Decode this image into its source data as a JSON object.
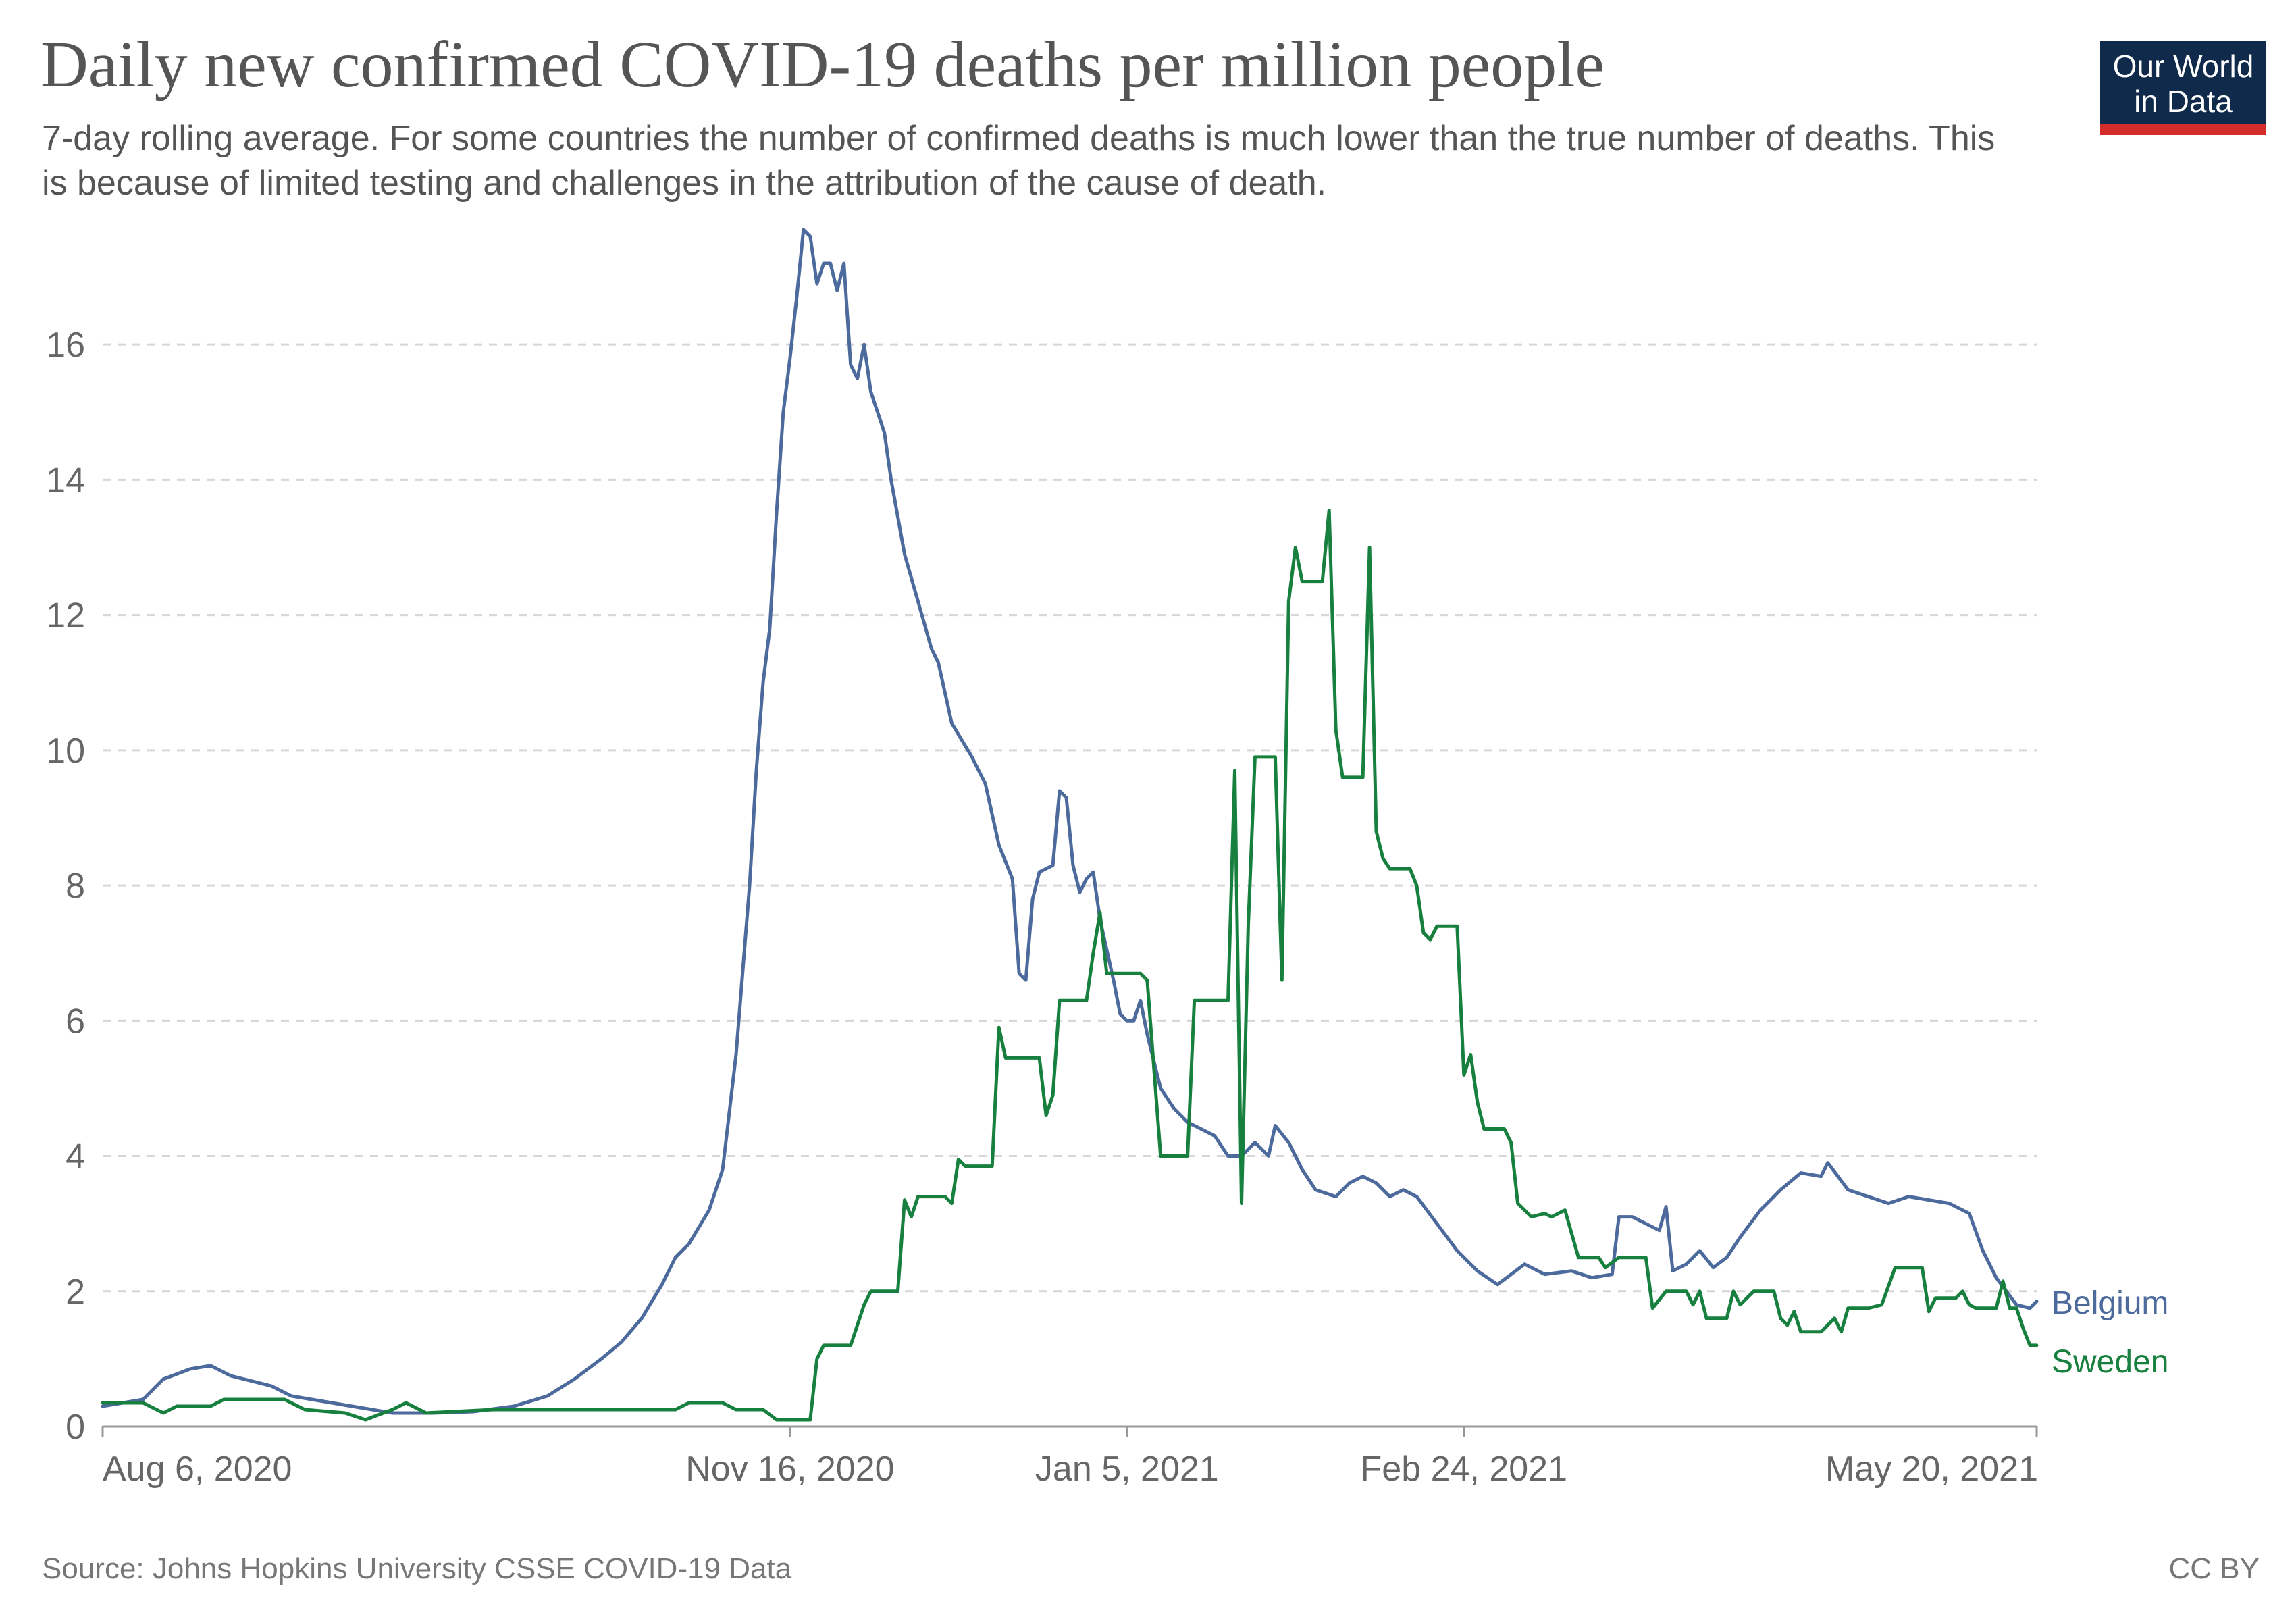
{
  "header": {
    "title": "Daily new confirmed COVID-19 deaths per million people",
    "subtitle": "7-day rolling average. For some countries the number of confirmed deaths is much lower than the true number of deaths. This is because of limited testing and challenges in the attribution of the cause of death."
  },
  "logo": {
    "line1": "Our World",
    "line2": "in Data"
  },
  "footer": {
    "source": "Source: Johns Hopkins University CSSE COVID-19 Data",
    "license": "CC BY"
  },
  "chart_data": {
    "type": "line",
    "title": "Daily new confirmed COVID-19 deaths per million people",
    "subtitle": "7-day rolling average. For some countries the number of confirmed deaths is much lower than the true number of deaths. This is because of limited testing and challenges in the attribution of the cause of death.",
    "xlabel": "",
    "ylabel": "",
    "xlim": [
      "2020-08-06",
      "2021-05-20"
    ],
    "ylim": [
      0,
      17.5
    ],
    "grid": true,
    "legend_placement": "right",
    "x_ticks": [
      "Aug 6, 2020",
      "Nov 16, 2020",
      "Jan 5, 2021",
      "Feb 24, 2021",
      "May 20, 2021"
    ],
    "x_tick_dates": [
      "2020-08-06",
      "2020-11-16",
      "2021-01-05",
      "2021-02-24",
      "2021-05-20"
    ],
    "y_ticks": [
      0,
      2,
      4,
      6,
      8,
      10,
      12,
      14,
      16
    ],
    "series": [
      {
        "name": "Belgium",
        "color": "#4c6a9c",
        "points": [
          [
            "2020-08-06",
            0.3
          ],
          [
            "2020-08-12",
            0.4
          ],
          [
            "2020-08-15",
            0.7
          ],
          [
            "2020-08-19",
            0.85
          ],
          [
            "2020-08-22",
            0.9
          ],
          [
            "2020-08-25",
            0.75
          ],
          [
            "2020-08-31",
            0.6
          ],
          [
            "2020-09-03",
            0.45
          ],
          [
            "2020-09-12",
            0.3
          ],
          [
            "2020-09-18",
            0.2
          ],
          [
            "2020-09-24",
            0.2
          ],
          [
            "2020-09-30",
            0.22
          ],
          [
            "2020-10-06",
            0.3
          ],
          [
            "2020-10-11",
            0.45
          ],
          [
            "2020-10-15",
            0.7
          ],
          [
            "2020-10-19",
            1.0
          ],
          [
            "2020-10-22",
            1.25
          ],
          [
            "2020-10-25",
            1.6
          ],
          [
            "2020-10-28",
            2.1
          ],
          [
            "2020-10-30",
            2.5
          ],
          [
            "2020-11-01",
            2.7
          ],
          [
            "2020-11-04",
            3.2
          ],
          [
            "2020-11-06",
            3.8
          ],
          [
            "2020-11-08",
            5.5
          ],
          [
            "2020-11-10",
            8.0
          ],
          [
            "2020-11-11",
            9.7
          ],
          [
            "2020-11-12",
            11.0
          ],
          [
            "2020-11-13",
            11.8
          ],
          [
            "2020-11-14",
            13.5
          ],
          [
            "2020-11-15",
            15.0
          ],
          [
            "2020-11-16",
            15.8
          ],
          [
            "2020-11-17",
            16.7
          ],
          [
            "2020-11-18",
            17.7
          ],
          [
            "2020-11-19",
            17.6
          ],
          [
            "2020-11-20",
            16.9
          ],
          [
            "2020-11-21",
            17.2
          ],
          [
            "2020-11-22",
            17.2
          ],
          [
            "2020-11-23",
            16.8
          ],
          [
            "2020-11-24",
            17.2
          ],
          [
            "2020-11-25",
            15.7
          ],
          [
            "2020-11-26",
            15.5
          ],
          [
            "2020-11-27",
            16.0
          ],
          [
            "2020-11-28",
            15.3
          ],
          [
            "2020-11-30",
            14.7
          ],
          [
            "2020-12-01",
            14.0
          ],
          [
            "2020-12-03",
            12.9
          ],
          [
            "2020-12-05",
            12.2
          ],
          [
            "2020-12-07",
            11.5
          ],
          [
            "2020-12-08",
            11.3
          ],
          [
            "2020-12-10",
            10.4
          ],
          [
            "2020-12-13",
            9.9
          ],
          [
            "2020-12-15",
            9.5
          ],
          [
            "2020-12-17",
            8.6
          ],
          [
            "2020-12-19",
            8.1
          ],
          [
            "2020-12-20",
            6.7
          ],
          [
            "2020-12-21",
            6.6
          ],
          [
            "2020-12-22",
            7.8
          ],
          [
            "2020-12-23",
            8.2
          ],
          [
            "2020-12-25",
            8.3
          ],
          [
            "2020-12-26",
            9.4
          ],
          [
            "2020-12-27",
            9.3
          ],
          [
            "2020-12-28",
            8.3
          ],
          [
            "2020-12-29",
            7.9
          ],
          [
            "2020-12-30",
            8.1
          ],
          [
            "2020-12-31",
            8.2
          ],
          [
            "2021-01-01",
            7.5
          ],
          [
            "2021-01-03",
            6.6
          ],
          [
            "2021-01-04",
            6.1
          ],
          [
            "2021-01-05",
            6.0
          ],
          [
            "2021-01-06",
            6.0
          ],
          [
            "2021-01-07",
            6.3
          ],
          [
            "2021-01-08",
            5.8
          ],
          [
            "2021-01-10",
            5.0
          ],
          [
            "2021-01-12",
            4.7
          ],
          [
            "2021-01-14",
            4.5
          ],
          [
            "2021-01-16",
            4.4
          ],
          [
            "2021-01-18",
            4.3
          ],
          [
            "2021-01-20",
            4.0
          ],
          [
            "2021-01-22",
            4.0
          ],
          [
            "2021-01-24",
            4.2
          ],
          [
            "2021-01-26",
            4.0
          ],
          [
            "2021-01-27",
            4.45
          ],
          [
            "2021-01-29",
            4.2
          ],
          [
            "2021-01-31",
            3.8
          ],
          [
            "2021-02-02",
            3.5
          ],
          [
            "2021-02-05",
            3.4
          ],
          [
            "2021-02-07",
            3.6
          ],
          [
            "2021-02-09",
            3.7
          ],
          [
            "2021-02-11",
            3.6
          ],
          [
            "2021-02-13",
            3.4
          ],
          [
            "2021-02-15",
            3.5
          ],
          [
            "2021-02-17",
            3.4
          ],
          [
            "2021-02-20",
            3.0
          ],
          [
            "2021-02-23",
            2.6
          ],
          [
            "2021-02-26",
            2.3
          ],
          [
            "2021-03-01",
            2.1
          ],
          [
            "2021-03-05",
            2.4
          ],
          [
            "2021-03-08",
            2.25
          ],
          [
            "2021-03-12",
            2.3
          ],
          [
            "2021-03-15",
            2.2
          ],
          [
            "2021-03-18",
            2.25
          ],
          [
            "2021-03-19",
            3.1
          ],
          [
            "2021-03-21",
            3.1
          ],
          [
            "2021-03-23",
            3.0
          ],
          [
            "2021-03-25",
            2.9
          ],
          [
            "2021-03-26",
            3.25
          ],
          [
            "2021-03-27",
            2.3
          ],
          [
            "2021-03-29",
            2.4
          ],
          [
            "2021-03-31",
            2.6
          ],
          [
            "2021-04-02",
            2.35
          ],
          [
            "2021-04-04",
            2.5
          ],
          [
            "2021-04-06",
            2.8
          ],
          [
            "2021-04-09",
            3.2
          ],
          [
            "2021-04-12",
            3.5
          ],
          [
            "2021-04-15",
            3.75
          ],
          [
            "2021-04-18",
            3.7
          ],
          [
            "2021-04-19",
            3.9
          ],
          [
            "2021-04-22",
            3.5
          ],
          [
            "2021-04-25",
            3.4
          ],
          [
            "2021-04-28",
            3.3
          ],
          [
            "2021-05-01",
            3.4
          ],
          [
            "2021-05-04",
            3.35
          ],
          [
            "2021-05-07",
            3.3
          ],
          [
            "2021-05-10",
            3.15
          ],
          [
            "2021-05-12",
            2.6
          ],
          [
            "2021-05-14",
            2.2
          ],
          [
            "2021-05-17",
            1.8
          ],
          [
            "2021-05-19",
            1.75
          ],
          [
            "2021-05-20",
            1.85
          ]
        ]
      },
      {
        "name": "Sweden",
        "color": "#17803f",
        "points": [
          [
            "2020-08-06",
            0.35
          ],
          [
            "2020-08-12",
            0.35
          ],
          [
            "2020-08-15",
            0.2
          ],
          [
            "2020-08-17",
            0.3
          ],
          [
            "2020-08-22",
            0.3
          ],
          [
            "2020-08-24",
            0.4
          ],
          [
            "2020-09-02",
            0.4
          ],
          [
            "2020-09-05",
            0.25
          ],
          [
            "2020-09-11",
            0.2
          ],
          [
            "2020-09-14",
            0.1
          ],
          [
            "2020-09-18",
            0.25
          ],
          [
            "2020-09-20",
            0.35
          ],
          [
            "2020-09-23",
            0.2
          ],
          [
            "2020-10-03",
            0.25
          ],
          [
            "2020-10-13",
            0.25
          ],
          [
            "2020-10-21",
            0.25
          ],
          [
            "2020-10-30",
            0.25
          ],
          [
            "2020-11-01",
            0.35
          ],
          [
            "2020-11-06",
            0.35
          ],
          [
            "2020-11-08",
            0.25
          ],
          [
            "2020-11-12",
            0.25
          ],
          [
            "2020-11-14",
            0.1
          ],
          [
            "2020-11-18",
            0.1
          ],
          [
            "2020-11-19",
            0.1
          ],
          [
            "2020-11-20",
            1.0
          ],
          [
            "2020-11-21",
            1.2
          ],
          [
            "2020-11-25",
            1.2
          ],
          [
            "2020-11-27",
            1.8
          ],
          [
            "2020-11-28",
            2.0
          ],
          [
            "2020-12-02",
            2.0
          ],
          [
            "2020-12-03",
            3.35
          ],
          [
            "2020-12-04",
            3.1
          ],
          [
            "2020-12-05",
            3.4
          ],
          [
            "2020-12-09",
            3.4
          ],
          [
            "2020-12-10",
            3.3
          ],
          [
            "2020-12-11",
            3.95
          ],
          [
            "2020-12-12",
            3.85
          ],
          [
            "2020-12-16",
            3.85
          ],
          [
            "2020-12-17",
            5.9
          ],
          [
            "2020-12-18",
            5.45
          ],
          [
            "2020-12-23",
            5.45
          ],
          [
            "2020-12-24",
            4.6
          ],
          [
            "2020-12-25",
            4.9
          ],
          [
            "2020-12-26",
            6.3
          ],
          [
            "2020-12-30",
            6.3
          ],
          [
            "2020-12-31",
            7.0
          ],
          [
            "2021-01-01",
            7.6
          ],
          [
            "2021-01-02",
            6.7
          ],
          [
            "2021-01-07",
            6.7
          ],
          [
            "2021-01-08",
            6.6
          ],
          [
            "2021-01-10",
            4.0
          ],
          [
            "2021-01-14",
            4.0
          ],
          [
            "2021-01-15",
            6.3
          ],
          [
            "2021-01-19",
            6.3
          ],
          [
            "2021-01-20",
            6.3
          ],
          [
            "2021-01-21",
            9.7
          ],
          [
            "2021-01-22",
            3.3
          ],
          [
            "2021-01-23",
            7.4
          ],
          [
            "2021-01-24",
            9.9
          ],
          [
            "2021-01-27",
            9.9
          ],
          [
            "2021-01-28",
            6.6
          ],
          [
            "2021-01-29",
            12.2
          ],
          [
            "2021-01-30",
            13.0
          ],
          [
            "2021-01-31",
            12.5
          ],
          [
            "2021-02-03",
            12.5
          ],
          [
            "2021-02-04",
            13.55
          ],
          [
            "2021-02-05",
            10.3
          ],
          [
            "2021-02-06",
            9.6
          ],
          [
            "2021-02-09",
            9.6
          ],
          [
            "2021-02-10",
            13.0
          ],
          [
            "2021-02-11",
            8.8
          ],
          [
            "2021-02-12",
            8.4
          ],
          [
            "2021-02-13",
            8.25
          ],
          [
            "2021-02-16",
            8.25
          ],
          [
            "2021-02-17",
            8.0
          ],
          [
            "2021-02-18",
            7.3
          ],
          [
            "2021-02-19",
            7.2
          ],
          [
            "2021-02-20",
            7.4
          ],
          [
            "2021-02-23",
            7.4
          ],
          [
            "2021-02-24",
            5.2
          ],
          [
            "2021-02-25",
            5.5
          ],
          [
            "2021-02-26",
            4.8
          ],
          [
            "2021-02-27",
            4.4
          ],
          [
            "2021-03-02",
            4.4
          ],
          [
            "2021-03-03",
            4.2
          ],
          [
            "2021-03-04",
            3.3
          ],
          [
            "2021-03-06",
            3.1
          ],
          [
            "2021-03-08",
            3.15
          ],
          [
            "2021-03-09",
            3.1
          ],
          [
            "2021-03-11",
            3.2
          ],
          [
            "2021-03-13",
            2.5
          ],
          [
            "2021-03-16",
            2.5
          ],
          [
            "2021-03-17",
            2.35
          ],
          [
            "2021-03-19",
            2.5
          ],
          [
            "2021-03-23",
            2.5
          ],
          [
            "2021-03-24",
            1.75
          ],
          [
            "2021-03-26",
            2.0
          ],
          [
            "2021-03-29",
            2.0
          ],
          [
            "2021-03-30",
            1.8
          ],
          [
            "2021-03-31",
            2.0
          ],
          [
            "2021-04-01",
            1.6
          ],
          [
            "2021-04-04",
            1.6
          ],
          [
            "2021-04-05",
            2.0
          ],
          [
            "2021-04-06",
            1.8
          ],
          [
            "2021-04-08",
            2.0
          ],
          [
            "2021-04-11",
            2.0
          ],
          [
            "2021-04-12",
            1.6
          ],
          [
            "2021-04-13",
            1.5
          ],
          [
            "2021-04-14",
            1.7
          ],
          [
            "2021-04-15",
            1.4
          ],
          [
            "2021-04-18",
            1.4
          ],
          [
            "2021-04-20",
            1.6
          ],
          [
            "2021-04-21",
            1.4
          ],
          [
            "2021-04-22",
            1.75
          ],
          [
            "2021-04-25",
            1.75
          ],
          [
            "2021-04-27",
            1.8
          ],
          [
            "2021-04-29",
            2.35
          ],
          [
            "2021-05-03",
            2.35
          ],
          [
            "2021-05-04",
            1.7
          ],
          [
            "2021-05-05",
            1.9
          ],
          [
            "2021-05-08",
            1.9
          ],
          [
            "2021-05-09",
            2.0
          ],
          [
            "2021-05-10",
            1.8
          ],
          [
            "2021-05-11",
            1.75
          ],
          [
            "2021-05-14",
            1.75
          ],
          [
            "2021-05-15",
            2.15
          ],
          [
            "2021-05-16",
            1.75
          ],
          [
            "2021-05-17",
            1.75
          ],
          [
            "2021-05-18",
            1.45
          ],
          [
            "2021-05-19",
            1.2
          ],
          [
            "2021-05-20",
            1.2
          ]
        ]
      }
    ]
  }
}
